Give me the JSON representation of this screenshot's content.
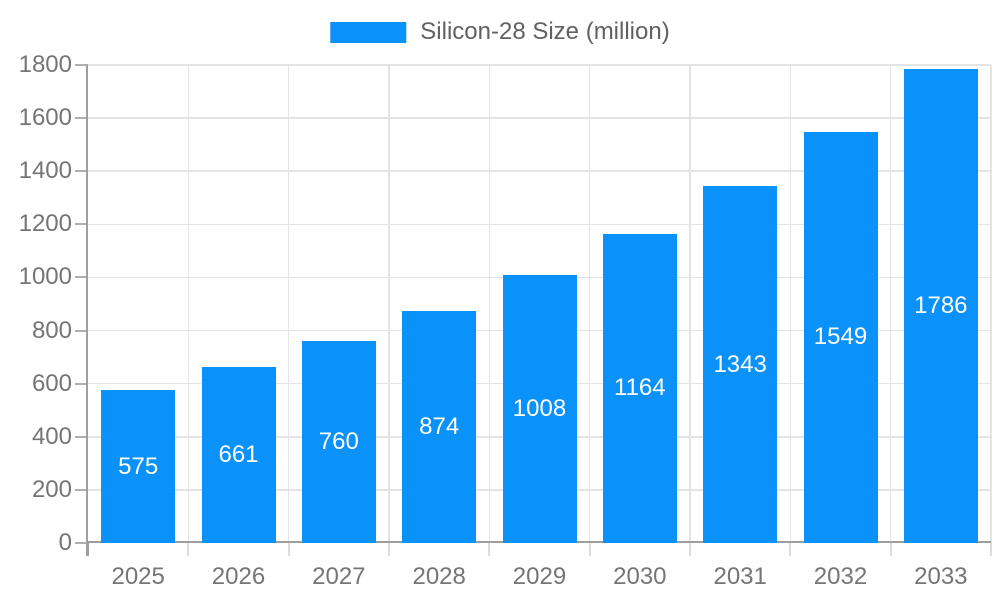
{
  "chart_data": {
    "type": "bar",
    "title": "Silicon-28 Size (million)",
    "legend": {
      "label": "Silicon-28 Size (million)",
      "position": "top-center"
    },
    "categories": [
      "2025",
      "2026",
      "2027",
      "2028",
      "2029",
      "2030",
      "2031",
      "2032",
      "2033"
    ],
    "values": [
      575,
      661,
      760,
      874,
      1008,
      1164,
      1343,
      1549,
      1786
    ],
    "xlabel": "",
    "ylabel": "",
    "ylim": [
      0,
      1800
    ],
    "yticks": [
      0,
      200,
      400,
      600,
      800,
      1000,
      1200,
      1400,
      1600,
      1800
    ],
    "grid": true,
    "bar_labels_visible": true,
    "bar_label_position": "inside-center",
    "colors": {
      "bar": "#0A91FA",
      "bar_label": "#FFFFFF",
      "axis": "#9E9E9E",
      "grid": "#E4E4E6",
      "y_tick": "#AFAFAF",
      "x_tick": "#DCDCDE",
      "axis_label": "#757575",
      "legend_text": "#616161",
      "background": "#FFFFFF"
    }
  }
}
